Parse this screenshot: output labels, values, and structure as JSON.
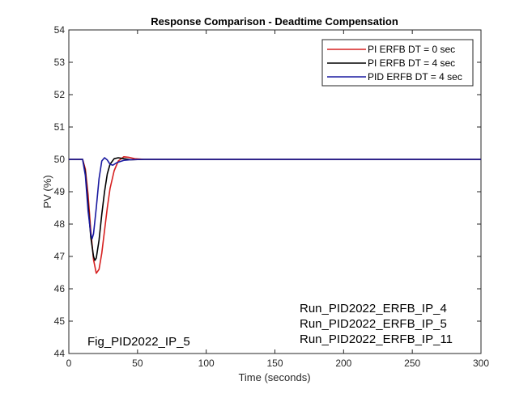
{
  "chart_data": {
    "type": "line",
    "title": "Response Comparison - Deadtime Compensation",
    "xlabel": "Time (seconds)",
    "ylabel": "PV (%)",
    "xlim": [
      0,
      300
    ],
    "ylim": [
      44,
      54
    ],
    "xticks": [
      0,
      50,
      100,
      150,
      200,
      250,
      300
    ],
    "yticks": [
      44,
      45,
      46,
      47,
      48,
      49,
      50,
      51,
      52,
      53,
      54
    ],
    "grid": false,
    "legend_position": "upper right",
    "series": [
      {
        "name": "PI ERFB DT = 0 sec",
        "color": "#d62020",
        "x": [
          0,
          10,
          12,
          14,
          16,
          18,
          20,
          22,
          24,
          26,
          28,
          30,
          33,
          36,
          40,
          44,
          48,
          55,
          65,
          80,
          300
        ],
        "y": [
          50,
          50,
          49.7,
          48.9,
          47.8,
          46.9,
          46.48,
          46.6,
          47.1,
          47.8,
          48.5,
          49.1,
          49.65,
          49.95,
          50.08,
          50.06,
          50.02,
          50.0,
          50.0,
          50.0,
          50.0
        ]
      },
      {
        "name": "PI ERFB DT = 4 sec",
        "color": "#000000",
        "x": [
          0,
          10,
          12,
          14,
          16,
          18,
          19,
          20,
          22,
          24,
          26,
          28,
          30,
          33,
          36,
          40,
          45,
          55,
          70,
          300
        ],
        "y": [
          50,
          50,
          49.6,
          48.6,
          47.6,
          47.0,
          46.88,
          46.95,
          47.5,
          48.3,
          49.0,
          49.55,
          49.85,
          50.02,
          50.05,
          50.02,
          49.99,
          50.0,
          50.0,
          50.0
        ]
      },
      {
        "name": "PID ERFB DT = 4 sec",
        "color": "#1a1aa0",
        "x": [
          0,
          10,
          12,
          14,
          16,
          17,
          18,
          20,
          22,
          24,
          26,
          28,
          30,
          32,
          35,
          40,
          45,
          55,
          300
        ],
        "y": [
          50,
          50,
          49.5,
          48.4,
          47.7,
          47.55,
          47.7,
          48.5,
          49.4,
          49.95,
          50.05,
          49.98,
          49.85,
          49.82,
          49.9,
          49.97,
          49.99,
          50.0,
          50.0
        ]
      }
    ],
    "annotations": [
      "Fig_PID2022_IP_5",
      "Run_PID2022_ERFB_IP_4",
      "Run_PID2022_ERFB_IP_5",
      "Run_PID2022_ERFB_IP_11"
    ]
  },
  "figure": {
    "title": "Response Comparison - Deadtime Compensation",
    "xlabel": "Time (seconds)",
    "ylabel": "PV (%)",
    "legend": [
      {
        "label": "PI ERFB DT = 0 sec",
        "color": "#d62020"
      },
      {
        "label": "PI ERFB DT = 4 sec",
        "color": "#000000"
      },
      {
        "label": "PID ERFB DT = 4 sec",
        "color": "#1a1aa0"
      }
    ],
    "annotation_left": "Fig_PID2022_IP_5",
    "annotation_right": [
      "Run_PID2022_ERFB_IP_4",
      "Run_PID2022_ERFB_IP_5",
      "Run_PID2022_ERFB_IP_11"
    ]
  }
}
